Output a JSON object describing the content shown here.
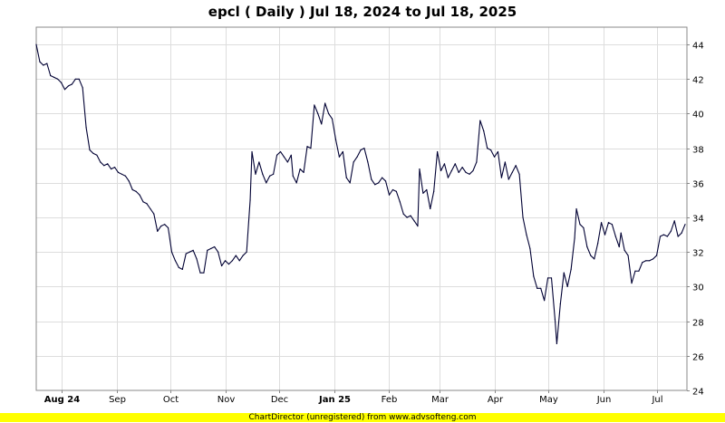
{
  "footer": {
    "text": "ChartDirector (unregistered) from www.advsofteng.com",
    "background": "#ffff00"
  },
  "chart_data": {
    "type": "line",
    "title": "epcl ( Daily ) Jul 18, 2024 to Jul 18, 2025",
    "xlabel": "",
    "ylabel": "",
    "ylim": [
      24,
      45
    ],
    "y_ticks": [
      24,
      26,
      28,
      30,
      32,
      34,
      36,
      38,
      40,
      42,
      44
    ],
    "y_axis_position": "right",
    "x_range": [
      "2024-07-18",
      "2025-07-18"
    ],
    "x_ticks": [
      {
        "date": "2024-08-01",
        "label": "Aug 24",
        "bold": true
      },
      {
        "date": "2024-09-01",
        "label": "Sep",
        "bold": false
      },
      {
        "date": "2024-10-01",
        "label": "Oct",
        "bold": false
      },
      {
        "date": "2024-11-01",
        "label": "Nov",
        "bold": false
      },
      {
        "date": "2024-12-01",
        "label": "Dec",
        "bold": false
      },
      {
        "date": "2025-01-01",
        "label": "Jan 25",
        "bold": true
      },
      {
        "date": "2025-02-01",
        "label": "Feb",
        "bold": false
      },
      {
        "date": "2025-03-01",
        "label": "Mar",
        "bold": false
      },
      {
        "date": "2025-04-01",
        "label": "Apr",
        "bold": false
      },
      {
        "date": "2025-05-01",
        "label": "May",
        "bold": false
      },
      {
        "date": "2025-06-01",
        "label": "Jun",
        "bold": false
      },
      {
        "date": "2025-07-01",
        "label": "Jul",
        "bold": false
      }
    ],
    "grid": true,
    "line_color": "#000033",
    "series": [
      {
        "points": [
          [
            "2024-07-18",
            44.0
          ],
          [
            "2024-07-20",
            43.0
          ],
          [
            "2024-07-22",
            42.8
          ],
          [
            "2024-07-24",
            42.9
          ],
          [
            "2024-07-26",
            42.2
          ],
          [
            "2024-07-28",
            42.1
          ],
          [
            "2024-07-30",
            42.0
          ],
          [
            "2024-08-01",
            41.8
          ],
          [
            "2024-08-03",
            41.4
          ],
          [
            "2024-08-05",
            41.6
          ],
          [
            "2024-08-07",
            41.7
          ],
          [
            "2024-08-09",
            42.0
          ],
          [
            "2024-08-11",
            42.0
          ],
          [
            "2024-08-13",
            41.5
          ],
          [
            "2024-08-15",
            39.2
          ],
          [
            "2024-08-17",
            37.9
          ],
          [
            "2024-08-19",
            37.7
          ],
          [
            "2024-08-21",
            37.6
          ],
          [
            "2024-08-23",
            37.2
          ],
          [
            "2024-08-25",
            37.0
          ],
          [
            "2024-08-27",
            37.1
          ],
          [
            "2024-08-29",
            36.8
          ],
          [
            "2024-08-31",
            36.9
          ],
          [
            "2024-09-02",
            36.6
          ],
          [
            "2024-09-04",
            36.5
          ],
          [
            "2024-09-06",
            36.4
          ],
          [
            "2024-09-08",
            36.1
          ],
          [
            "2024-09-10",
            35.6
          ],
          [
            "2024-09-12",
            35.5
          ],
          [
            "2024-09-14",
            35.3
          ],
          [
            "2024-09-16",
            34.9
          ],
          [
            "2024-09-18",
            34.8
          ],
          [
            "2024-09-20",
            34.5
          ],
          [
            "2024-09-22",
            34.2
          ],
          [
            "2024-09-24",
            33.2
          ],
          [
            "2024-09-26",
            33.5
          ],
          [
            "2024-09-28",
            33.6
          ],
          [
            "2024-09-30",
            33.4
          ],
          [
            "2024-10-02",
            32.0
          ],
          [
            "2024-10-04",
            31.5
          ],
          [
            "2024-10-06",
            31.1
          ],
          [
            "2024-10-08",
            31.0
          ],
          [
            "2024-10-10",
            31.9
          ],
          [
            "2024-10-12",
            32.0
          ],
          [
            "2024-10-14",
            32.1
          ],
          [
            "2024-10-16",
            31.6
          ],
          [
            "2024-10-18",
            30.8
          ],
          [
            "2024-10-20",
            30.8
          ],
          [
            "2024-10-22",
            32.1
          ],
          [
            "2024-10-24",
            32.2
          ],
          [
            "2024-10-26",
            32.3
          ],
          [
            "2024-10-28",
            32.0
          ],
          [
            "2024-10-30",
            31.2
          ],
          [
            "2024-11-01",
            31.5
          ],
          [
            "2024-11-03",
            31.3
          ],
          [
            "2024-11-05",
            31.5
          ],
          [
            "2024-11-07",
            31.8
          ],
          [
            "2024-11-09",
            31.5
          ],
          [
            "2024-11-11",
            31.8
          ],
          [
            "2024-11-13",
            32.0
          ],
          [
            "2024-11-15",
            35.0
          ],
          [
            "2024-11-16",
            37.8
          ],
          [
            "2024-11-18",
            36.5
          ],
          [
            "2024-11-20",
            37.2
          ],
          [
            "2024-11-22",
            36.5
          ],
          [
            "2024-11-24",
            36.0
          ],
          [
            "2024-11-26",
            36.4
          ],
          [
            "2024-11-28",
            36.5
          ],
          [
            "2024-11-30",
            37.6
          ],
          [
            "2024-12-02",
            37.8
          ],
          [
            "2024-12-04",
            37.5
          ],
          [
            "2024-12-06",
            37.2
          ],
          [
            "2024-12-08",
            37.6
          ],
          [
            "2024-12-09",
            36.4
          ],
          [
            "2024-12-11",
            36.0
          ],
          [
            "2024-12-13",
            36.8
          ],
          [
            "2024-12-15",
            36.6
          ],
          [
            "2024-12-17",
            38.1
          ],
          [
            "2024-12-19",
            38.0
          ],
          [
            "2024-12-21",
            40.5
          ],
          [
            "2024-12-23",
            40.0
          ],
          [
            "2024-12-25",
            39.4
          ],
          [
            "2024-12-27",
            40.6
          ],
          [
            "2024-12-29",
            40.0
          ],
          [
            "2024-12-31",
            39.7
          ],
          [
            "2025-01-02",
            38.5
          ],
          [
            "2025-01-04",
            37.5
          ],
          [
            "2025-01-06",
            37.8
          ],
          [
            "2025-01-08",
            36.3
          ],
          [
            "2025-01-10",
            36.0
          ],
          [
            "2025-01-12",
            37.2
          ],
          [
            "2025-01-14",
            37.5
          ],
          [
            "2025-01-16",
            37.9
          ],
          [
            "2025-01-18",
            38.0
          ],
          [
            "2025-01-20",
            37.2
          ],
          [
            "2025-01-22",
            36.2
          ],
          [
            "2025-01-24",
            35.9
          ],
          [
            "2025-01-26",
            36.0
          ],
          [
            "2025-01-28",
            36.3
          ],
          [
            "2025-01-30",
            36.1
          ],
          [
            "2025-02-01",
            35.3
          ],
          [
            "2025-02-03",
            35.6
          ],
          [
            "2025-02-05",
            35.5
          ],
          [
            "2025-02-07",
            34.9
          ],
          [
            "2025-02-09",
            34.2
          ],
          [
            "2025-02-11",
            34.0
          ],
          [
            "2025-02-13",
            34.1
          ],
          [
            "2025-02-15",
            33.8
          ],
          [
            "2025-02-17",
            33.5
          ],
          [
            "2025-02-18",
            36.8
          ],
          [
            "2025-02-20",
            35.4
          ],
          [
            "2025-02-22",
            35.6
          ],
          [
            "2025-02-24",
            34.5
          ],
          [
            "2025-02-26",
            35.5
          ],
          [
            "2025-02-28",
            37.8
          ],
          [
            "2025-03-02",
            36.7
          ],
          [
            "2025-03-04",
            37.1
          ],
          [
            "2025-03-06",
            36.3
          ],
          [
            "2025-03-08",
            36.7
          ],
          [
            "2025-03-10",
            37.1
          ],
          [
            "2025-03-12",
            36.6
          ],
          [
            "2025-03-14",
            36.9
          ],
          [
            "2025-03-16",
            36.6
          ],
          [
            "2025-03-18",
            36.5
          ],
          [
            "2025-03-20",
            36.7
          ],
          [
            "2025-03-22",
            37.2
          ],
          [
            "2025-03-24",
            39.6
          ],
          [
            "2025-03-26",
            39.0
          ],
          [
            "2025-03-28",
            38.0
          ],
          [
            "2025-03-30",
            37.9
          ],
          [
            "2025-04-01",
            37.5
          ],
          [
            "2025-04-03",
            37.8
          ],
          [
            "2025-04-05",
            36.3
          ],
          [
            "2025-04-07",
            37.2
          ],
          [
            "2025-04-09",
            36.2
          ],
          [
            "2025-04-11",
            36.6
          ],
          [
            "2025-04-13",
            37.0
          ],
          [
            "2025-04-15",
            36.5
          ],
          [
            "2025-04-17",
            34.0
          ],
          [
            "2025-04-19",
            33.0
          ],
          [
            "2025-04-21",
            32.2
          ],
          [
            "2025-04-23",
            30.6
          ],
          [
            "2025-04-25",
            29.9
          ],
          [
            "2025-04-27",
            29.9
          ],
          [
            "2025-04-29",
            29.2
          ],
          [
            "2025-05-01",
            30.5
          ],
          [
            "2025-05-03",
            30.5
          ],
          [
            "2025-05-05",
            28.1
          ],
          [
            "2025-05-06",
            26.7
          ],
          [
            "2025-05-08",
            29.0
          ],
          [
            "2025-05-10",
            30.8
          ],
          [
            "2025-05-12",
            30.0
          ],
          [
            "2025-05-14",
            31.0
          ],
          [
            "2025-05-16",
            32.8
          ],
          [
            "2025-05-17",
            34.5
          ],
          [
            "2025-05-19",
            33.6
          ],
          [
            "2025-05-21",
            33.4
          ],
          [
            "2025-05-23",
            32.3
          ],
          [
            "2025-05-25",
            31.8
          ],
          [
            "2025-05-27",
            31.6
          ],
          [
            "2025-05-29",
            32.5
          ],
          [
            "2025-05-31",
            33.7
          ],
          [
            "2025-06-02",
            33.0
          ],
          [
            "2025-06-04",
            33.7
          ],
          [
            "2025-06-06",
            33.6
          ],
          [
            "2025-06-08",
            32.9
          ],
          [
            "2025-06-10",
            32.3
          ],
          [
            "2025-06-11",
            33.1
          ],
          [
            "2025-06-13",
            32.1
          ],
          [
            "2025-06-15",
            31.8
          ],
          [
            "2025-06-17",
            30.2
          ],
          [
            "2025-06-19",
            30.9
          ],
          [
            "2025-06-21",
            30.9
          ],
          [
            "2025-06-23",
            31.4
          ],
          [
            "2025-06-25",
            31.5
          ],
          [
            "2025-06-27",
            31.5
          ],
          [
            "2025-06-29",
            31.6
          ],
          [
            "2025-07-01",
            31.8
          ],
          [
            "2025-07-03",
            32.9
          ],
          [
            "2025-07-05",
            33.0
          ],
          [
            "2025-07-07",
            32.9
          ],
          [
            "2025-07-09",
            33.2
          ],
          [
            "2025-07-11",
            33.8
          ],
          [
            "2025-07-13",
            32.9
          ],
          [
            "2025-07-15",
            33.1
          ],
          [
            "2025-07-17",
            33.6
          ]
        ]
      }
    ]
  }
}
